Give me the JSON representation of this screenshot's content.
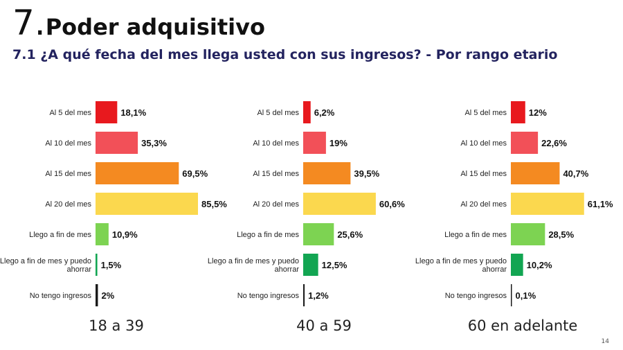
{
  "header": {
    "number": "7.",
    "title": "Poder adquisitivo",
    "subtitle": "7.1 ¿A qué fecha del mes llega usted con sus ingresos?  - Por rango etario"
  },
  "page_number": "14",
  "colors": [
    "#e8191e",
    "#f25058",
    "#f48a21",
    "#fbd84e",
    "#7dd352",
    "#12a552",
    "#1a1a1a"
  ],
  "chart_data": [
    {
      "type": "bar",
      "orientation": "horizontal",
      "group": "18 a 39",
      "categories": [
        "Al 5 del mes",
        "Al 10 del mes",
        "Al 15 del mes",
        "Al 20 del mes",
        "Llego a fin de mes",
        "Llego a fin de mes y puedo ahorrar",
        "No tengo ingresos"
      ],
      "values": [
        18.1,
        35.3,
        69.5,
        85.5,
        10.9,
        1.5,
        2
      ],
      "value_labels": [
        "18,1%",
        "35,3%",
        "69,5%",
        "85,5%",
        "10,9%",
        "1,5%",
        "2%"
      ]
    },
    {
      "type": "bar",
      "orientation": "horizontal",
      "group": "40 a 59",
      "categories": [
        "Al 5 del mes",
        "Al 10 del mes",
        "Al 15 del mes",
        "Al 20 del mes",
        "Llego a fin de mes",
        "Llego a fin de mes y puedo ahorrar",
        "No tengo ingresos"
      ],
      "values": [
        6.2,
        19,
        39.5,
        60.6,
        25.6,
        12.5,
        1.2
      ],
      "value_labels": [
        "6,2%",
        "19%",
        "39,5%",
        "60,6%",
        "25,6%",
        "12,5%",
        "1,2%"
      ]
    },
    {
      "type": "bar",
      "orientation": "horizontal",
      "group": "60 en adelante",
      "categories": [
        "Al 5 del mes",
        "Al 10 del mes",
        "Al 15 del mes",
        "Al 20 del mes",
        "Llego a fin de mes",
        "Llego a fin de mes y puedo ahorrar",
        "No tengo ingresos"
      ],
      "values": [
        12,
        22.6,
        40.7,
        61.1,
        28.5,
        10.2,
        0.1
      ],
      "value_labels": [
        "12%",
        "22,6%",
        "40,7%",
        "61,1%",
        "28,5%",
        "10,2%",
        "0,1%"
      ]
    }
  ]
}
